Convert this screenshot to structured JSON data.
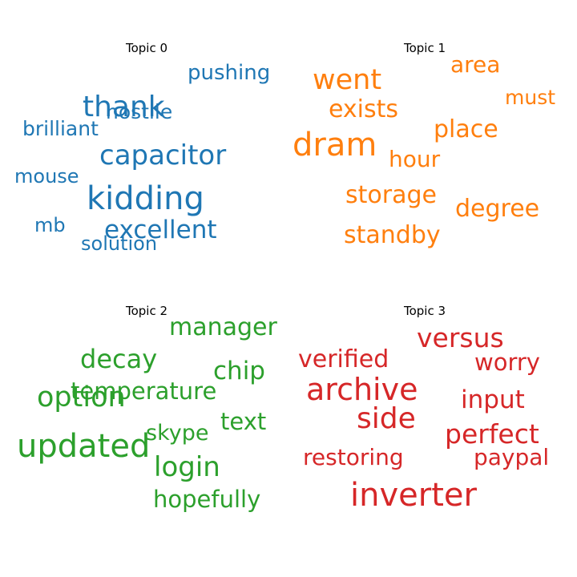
{
  "chart_data": [
    {
      "type": "wordcloud",
      "title": "Topic 0",
      "color": "#1f77b4",
      "words": [
        {
          "text": "kidding",
          "weight": 40
        },
        {
          "text": "thank",
          "weight": 36
        },
        {
          "text": "capacitor",
          "weight": 34
        },
        {
          "text": "excellent",
          "weight": 31
        },
        {
          "text": "pushing",
          "weight": 26
        },
        {
          "text": "hostile",
          "weight": 25
        },
        {
          "text": "brilliant",
          "weight": 25
        },
        {
          "text": "mouse",
          "weight": 24
        },
        {
          "text": "solution",
          "weight": 24
        },
        {
          "text": "mb",
          "weight": 24
        }
      ]
    },
    {
      "type": "wordcloud",
      "title": "Topic 1",
      "color": "#ff7f0e",
      "words": [
        {
          "text": "dram",
          "weight": 40
        },
        {
          "text": "went",
          "weight": 35
        },
        {
          "text": "exists",
          "weight": 30
        },
        {
          "text": "place",
          "weight": 30
        },
        {
          "text": "storage",
          "weight": 30
        },
        {
          "text": "standby",
          "weight": 30
        },
        {
          "text": "degree",
          "weight": 30
        },
        {
          "text": "area",
          "weight": 28
        },
        {
          "text": "hour",
          "weight": 28
        },
        {
          "text": "must",
          "weight": 25
        }
      ]
    },
    {
      "type": "wordcloud",
      "title": "Topic 2",
      "color": "#2ca02c",
      "words": [
        {
          "text": "updated",
          "weight": 40
        },
        {
          "text": "option",
          "weight": 35
        },
        {
          "text": "login",
          "weight": 34
        },
        {
          "text": "decay",
          "weight": 32
        },
        {
          "text": "chip",
          "weight": 31
        },
        {
          "text": "manager",
          "weight": 30
        },
        {
          "text": "temperature",
          "weight": 29
        },
        {
          "text": "text",
          "weight": 29
        },
        {
          "text": "hopefully",
          "weight": 29
        },
        {
          "text": "skype",
          "weight": 27
        }
      ]
    },
    {
      "type": "wordcloud",
      "title": "Topic 3",
      "color": "#d62728",
      "words": [
        {
          "text": "inverter",
          "weight": 40
        },
        {
          "text": "archive",
          "weight": 38
        },
        {
          "text": "side",
          "weight": 36
        },
        {
          "text": "versus",
          "weight": 33
        },
        {
          "text": "perfect",
          "weight": 33
        },
        {
          "text": "input",
          "weight": 31
        },
        {
          "text": "verified",
          "weight": 30
        },
        {
          "text": "worry",
          "weight": 29
        },
        {
          "text": "restoring",
          "weight": 28
        },
        {
          "text": "paypal",
          "weight": 28
        }
      ]
    }
  ]
}
